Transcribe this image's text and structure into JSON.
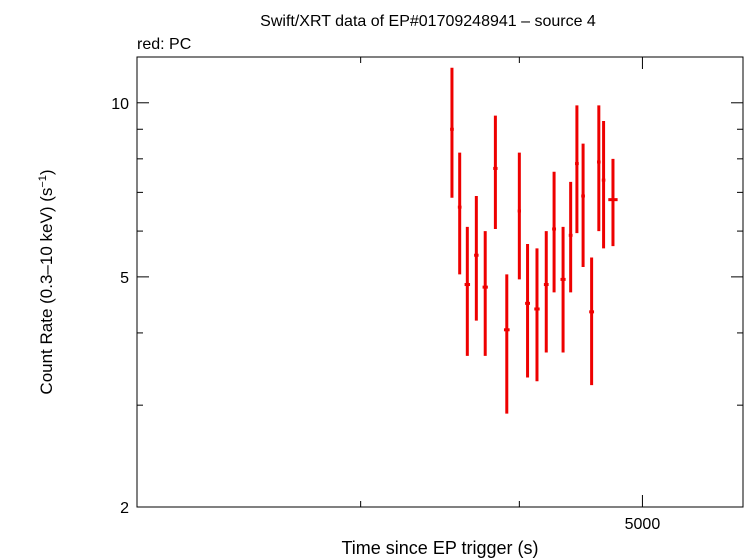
{
  "chart_data": {
    "type": "scatter",
    "title": "Swift/XRT data of EP#01709248941 – source 4",
    "subtitle": "red: PC",
    "xlabel": "Time since EP trigger (s)",
    "ylabel_main": "Count Rate (0.3–10 keV) (s",
    "ylabel_exp": "−1",
    "ylabel_close": ")",
    "x_scale": "log",
    "y_scale": "log",
    "xlim": [
      2000,
      6000
    ],
    "ylim": [
      2,
      12
    ],
    "y_ticks": [
      {
        "value": 2,
        "label": "2"
      },
      {
        "value": 5,
        "label": "5"
      },
      {
        "value": 10,
        "label": "10"
      }
    ],
    "y_minor_ticks": [
      3,
      4,
      6,
      7,
      8,
      9
    ],
    "x_ticks": [
      {
        "value": 5000,
        "label": "5000"
      }
    ],
    "x_minor_ticks": [
      3000,
      4000
    ],
    "grid": false,
    "series": [
      {
        "color": "#ee0000",
        "points": [
          {
            "x": 3540,
            "xerr": 12,
            "y": 9.0,
            "ylo": 6.85,
            "yhi": 11.5
          },
          {
            "x": 3590,
            "xerr": 12,
            "y": 6.6,
            "ylo": 5.05,
            "yhi": 8.2
          },
          {
            "x": 3640,
            "xerr": 18,
            "y": 4.85,
            "ylo": 3.65,
            "yhi": 6.1
          },
          {
            "x": 3700,
            "xerr": 15,
            "y": 5.45,
            "ylo": 4.2,
            "yhi": 6.9
          },
          {
            "x": 3760,
            "xerr": 18,
            "y": 4.8,
            "ylo": 3.65,
            "yhi": 6.0
          },
          {
            "x": 3830,
            "xerr": 15,
            "y": 7.7,
            "ylo": 6.05,
            "yhi": 9.5
          },
          {
            "x": 3910,
            "xerr": 20,
            "y": 4.05,
            "ylo": 2.9,
            "yhi": 5.05
          },
          {
            "x": 4000,
            "xerr": 12,
            "y": 6.5,
            "ylo": 4.95,
            "yhi": 8.2
          },
          {
            "x": 4060,
            "xerr": 18,
            "y": 4.5,
            "ylo": 3.35,
            "yhi": 5.7
          },
          {
            "x": 4130,
            "xerr": 20,
            "y": 4.4,
            "ylo": 3.3,
            "yhi": 5.6
          },
          {
            "x": 4200,
            "xerr": 18,
            "y": 4.85,
            "ylo": 3.7,
            "yhi": 6.0
          },
          {
            "x": 4260,
            "xerr": 15,
            "y": 6.05,
            "ylo": 4.7,
            "yhi": 7.6
          },
          {
            "x": 4330,
            "xerr": 20,
            "y": 4.95,
            "ylo": 3.7,
            "yhi": 6.1
          },
          {
            "x": 4390,
            "xerr": 15,
            "y": 5.9,
            "ylo": 4.7,
            "yhi": 7.3
          },
          {
            "x": 4440,
            "xerr": 15,
            "y": 7.85,
            "ylo": 5.95,
            "yhi": 9.9
          },
          {
            "x": 4490,
            "xerr": 15,
            "y": 6.9,
            "ylo": 5.2,
            "yhi": 8.5
          },
          {
            "x": 4560,
            "xerr": 20,
            "y": 4.35,
            "ylo": 3.25,
            "yhi": 5.4
          },
          {
            "x": 4620,
            "xerr": 15,
            "y": 7.9,
            "ylo": 6.0,
            "yhi": 9.9
          },
          {
            "x": 4660,
            "xerr": 15,
            "y": 7.35,
            "ylo": 5.6,
            "yhi": 9.3
          },
          {
            "x": 4740,
            "xerr": 40,
            "y": 6.8,
            "ylo": 5.65,
            "yhi": 8.0
          }
        ]
      }
    ]
  }
}
